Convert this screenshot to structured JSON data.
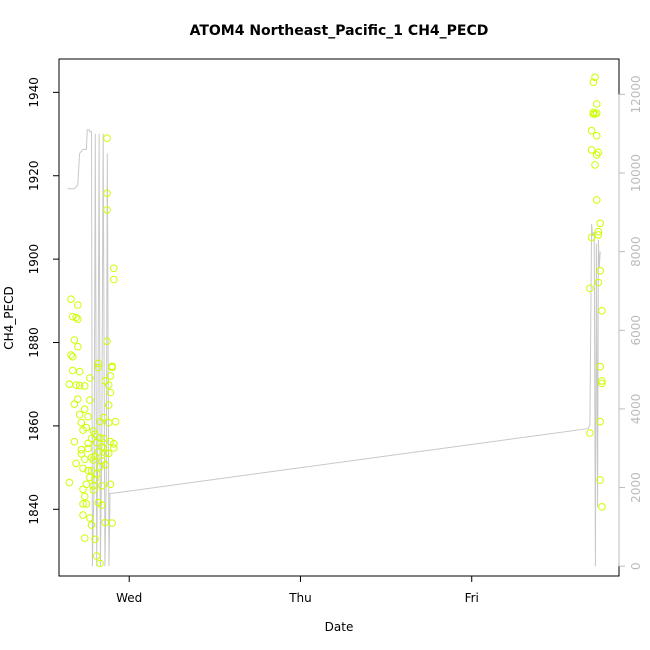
{
  "chart_data": {
    "type": "scatter",
    "title": "ATOM4 Northeast_Pacific_1 CH4_PECD",
    "xlabel": "Date",
    "ylabel": "CH4_PECD",
    "x_ticks": [
      "Wed",
      "Thu",
      "Fri"
    ],
    "y_ticks": [
      "1840",
      "1860",
      "1880",
      "1900",
      "1920",
      "1940"
    ],
    "y2_ticks": [
      "0",
      "2000",
      "4000",
      "6000",
      "8000",
      "10000",
      "12000"
    ],
    "ylim": [
      1824,
      1948
    ],
    "y2lim": [
      -250,
      12900
    ],
    "xlim_days_from_wed": [
      -0.41,
      2.86
    ],
    "grid": false,
    "colors": {
      "points": "#ccff00",
      "line": "#c8c8c8",
      "axis": "#000000",
      "right_axis": "#bbbbbb"
    },
    "series": [
      {
        "kind": "points",
        "group": "wed",
        "values": [
          [
            -0.35,
            1846.4
          ],
          [
            -0.35,
            1870
          ],
          [
            -0.34,
            1877
          ],
          [
            -0.34,
            1890.4
          ],
          [
            -0.33,
            1886.2
          ],
          [
            -0.33,
            1876.6
          ],
          [
            -0.33,
            1873.3
          ],
          [
            -0.32,
            1856.2
          ],
          [
            -0.32,
            1865.2
          ],
          [
            -0.32,
            1880.6
          ],
          [
            -0.31,
            1869.8
          ],
          [
            -0.31,
            1851
          ],
          [
            -0.31,
            1886
          ],
          [
            -0.3,
            1889
          ],
          [
            -0.3,
            1885.6
          ],
          [
            -0.3,
            1879
          ],
          [
            -0.3,
            1866.4
          ],
          [
            -0.29,
            1873
          ],
          [
            -0.29,
            1869.7
          ],
          [
            -0.29,
            1862.7
          ],
          [
            -0.28,
            1854.3
          ],
          [
            -0.28,
            1853.3
          ],
          [
            -0.28,
            1860.8
          ],
          [
            -0.27,
            1841.3
          ],
          [
            -0.27,
            1844.8
          ],
          [
            -0.27,
            1849.8
          ],
          [
            -0.27,
            1838.6
          ],
          [
            -0.26,
            1833.1
          ],
          [
            -0.26,
            1864
          ],
          [
            -0.26,
            1852
          ],
          [
            -0.26,
            1869.6
          ],
          [
            -0.25,
            1841.3
          ],
          [
            -0.25,
            1859.6
          ],
          [
            -0.25,
            1846
          ],
          [
            -0.24,
            1854.6
          ],
          [
            -0.24,
            1862.2
          ],
          [
            -0.24,
            1855.8
          ],
          [
            -0.23,
            1847.6
          ],
          [
            -0.23,
            1837.9
          ],
          [
            -0.23,
            1871.5
          ],
          [
            -0.22,
            1836.2
          ],
          [
            -0.22,
            1849.2
          ],
          [
            -0.22,
            1857
          ],
          [
            -0.21,
            1851.8
          ],
          [
            -0.21,
            1844.6
          ],
          [
            -0.21,
            1845.6
          ],
          [
            -0.2,
            1858
          ],
          [
            -0.2,
            1852.7
          ],
          [
            -0.2,
            1832.8
          ],
          [
            -0.19,
            1848.5
          ],
          [
            -0.19,
            1828.8
          ],
          [
            -0.19,
            1856
          ],
          [
            -0.18,
            1853.8
          ],
          [
            -0.18,
            1874
          ],
          [
            -0.18,
            1875
          ],
          [
            -0.17,
            1827
          ],
          [
            -0.17,
            1857.1
          ],
          [
            -0.17,
            1861
          ],
          [
            -0.17,
            1850.2
          ],
          [
            -0.16,
            1851.6
          ],
          [
            -0.16,
            1841
          ],
          [
            -0.16,
            1855
          ],
          [
            -0.15,
            1854.7
          ],
          [
            -0.15,
            1857
          ],
          [
            -0.15,
            1862
          ],
          [
            -0.14,
            1836.8
          ],
          [
            -0.14,
            1853.5
          ],
          [
            -0.14,
            1850.7
          ],
          [
            -0.14,
            1870.8
          ],
          [
            -0.13,
            1915.8
          ],
          [
            -0.13,
            1911.8
          ],
          [
            -0.13,
            1929
          ],
          [
            -0.13,
            1880.3
          ],
          [
            -0.12,
            1869.8
          ],
          [
            -0.12,
            1860.8
          ],
          [
            -0.12,
            1865
          ],
          [
            -0.11,
            1856.2
          ],
          [
            -0.11,
            1846
          ],
          [
            -0.11,
            1868
          ],
          [
            -0.11,
            1872
          ],
          [
            -0.1,
            1874.3
          ],
          [
            -0.1,
            1874
          ],
          [
            -0.1,
            1836.7
          ],
          [
            -0.09,
            1897.8
          ],
          [
            -0.09,
            1895.1
          ],
          [
            -0.09,
            1855.7
          ],
          [
            -0.09,
            1854.7
          ],
          [
            -0.08,
            1861
          ],
          [
            -0.2,
            1847.2
          ],
          [
            -0.22,
            1852.4
          ],
          [
            -0.18,
            1841.6
          ],
          [
            -0.24,
            1849.3
          ],
          [
            -0.26,
            1843.1
          ],
          [
            -0.27,
            1859
          ],
          [
            -0.23,
            1866.2
          ],
          [
            -0.21,
            1858.8
          ],
          [
            -0.16,
            1845.6
          ],
          [
            -0.12,
            1853.4
          ]
        ]
      },
      {
        "kind": "points",
        "group": "fri",
        "values": [
          [
            2.69,
            1893
          ],
          [
            2.69,
            1858.3
          ],
          [
            2.7,
            1905.2
          ],
          [
            2.7,
            1926.2
          ],
          [
            2.7,
            1930.8
          ],
          [
            2.71,
            1942.4
          ],
          [
            2.71,
            1935.2
          ],
          [
            2.72,
            1934.8
          ],
          [
            2.72,
            1943.6
          ],
          [
            2.72,
            1922.6
          ],
          [
            2.73,
            1929.6
          ],
          [
            2.73,
            1925
          ],
          [
            2.73,
            1937.2
          ],
          [
            2.73,
            1914.2
          ],
          [
            2.74,
            1905.8
          ],
          [
            2.74,
            1906.6
          ],
          [
            2.74,
            1925.6
          ],
          [
            2.74,
            1894.4
          ],
          [
            2.75,
            1897.2
          ],
          [
            2.75,
            1908.6
          ],
          [
            2.75,
            1874.2
          ],
          [
            2.75,
            1861
          ],
          [
            2.75,
            1847
          ],
          [
            2.76,
            1887.6
          ],
          [
            2.76,
            1840.6
          ],
          [
            2.76,
            1870.8
          ],
          [
            2.76,
            1870.2
          ],
          [
            2.73,
            1935
          ],
          [
            2.71,
            1934.8
          ]
        ]
      },
      {
        "kind": "line",
        "axis": "right",
        "values": [
          [
            -0.36,
            9600
          ],
          [
            -0.32,
            9600
          ],
          [
            -0.3,
            9700
          ],
          [
            -0.29,
            10500
          ],
          [
            -0.27,
            10600
          ],
          [
            -0.25,
            10600
          ],
          [
            -0.245,
            11100
          ],
          [
            -0.235,
            11100
          ],
          [
            -0.23,
            11050
          ],
          [
            -0.22,
            11050
          ],
          [
            -0.215,
            0
          ],
          [
            -0.205,
            2200
          ],
          [
            -0.198,
            11000
          ],
          [
            -0.19,
            0
          ],
          [
            -0.183,
            3500
          ],
          [
            -0.176,
            11000
          ],
          [
            -0.168,
            0
          ],
          [
            -0.16,
            3200
          ],
          [
            -0.152,
            11000
          ],
          [
            -0.142,
            0
          ],
          [
            -0.134,
            2300
          ],
          [
            -0.128,
            10500
          ],
          [
            -0.118,
            0
          ],
          [
            -0.112,
            1850
          ],
          [
            -0.102,
            1850
          ],
          [
            2.68,
            3500
          ],
          [
            2.69,
            3600
          ],
          [
            2.7,
            8700
          ],
          [
            2.705,
            8400
          ],
          [
            2.715,
            8500
          ],
          [
            2.722,
            0
          ],
          [
            2.728,
            8200
          ],
          [
            2.735,
            1500
          ],
          [
            2.74,
            8300
          ],
          [
            2.745,
            7600
          ],
          [
            2.75,
            8000
          ]
        ]
      }
    ]
  }
}
